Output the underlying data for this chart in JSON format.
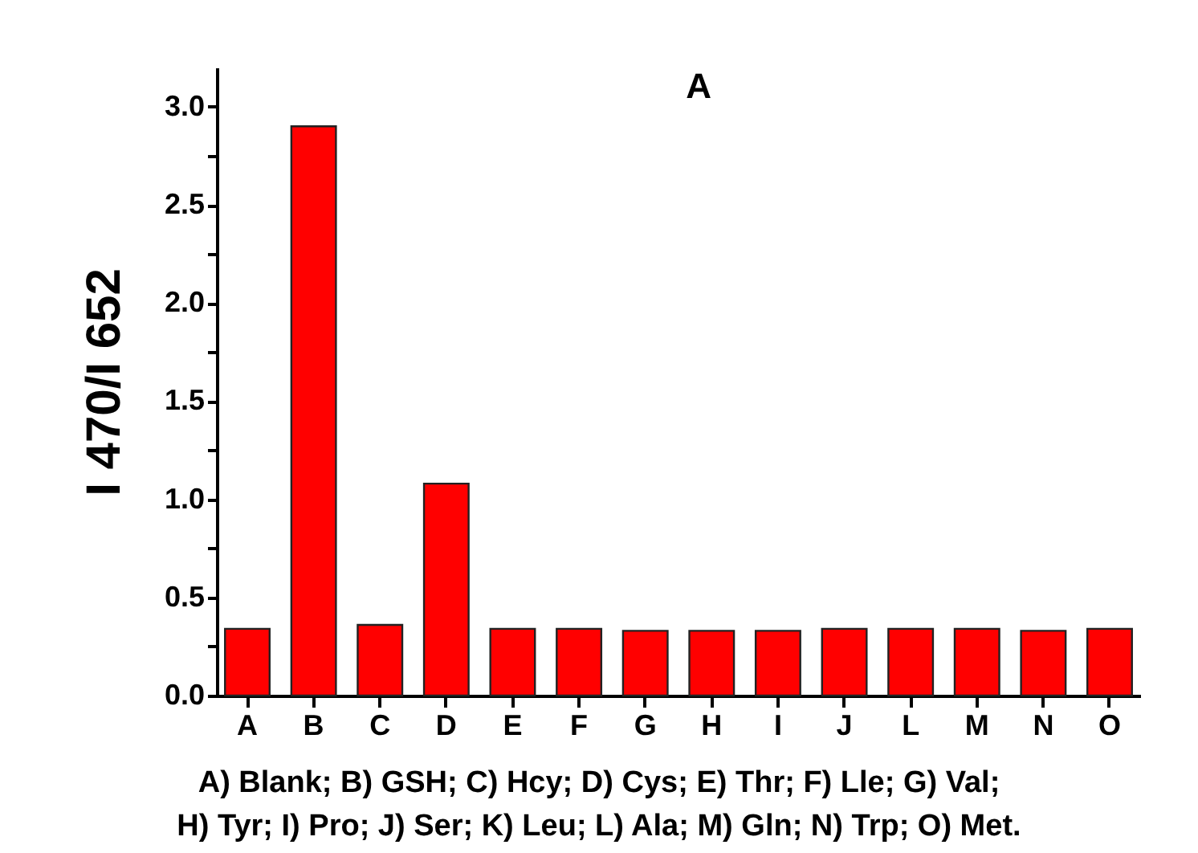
{
  "chart_data": {
    "type": "bar",
    "title": "A",
    "ylabel": "I 470/I 652",
    "categories": [
      "A",
      "B",
      "C",
      "D",
      "E",
      "F",
      "G",
      "H",
      "I",
      "J",
      "L",
      "M",
      "N",
      "O"
    ],
    "values": [
      0.34,
      2.9,
      0.36,
      1.08,
      0.34,
      0.34,
      0.33,
      0.33,
      0.33,
      0.34,
      0.34,
      0.34,
      0.33,
      0.34
    ],
    "color": "#ff0000",
    "ylim": [
      0,
      3.2
    ],
    "yticks": [
      {
        "value": 0,
        "label": "0.0"
      },
      {
        "value": 0.25,
        "label": null
      },
      0.5,
      {
        "value": 0.75,
        "label": null
      },
      {
        "value": 1,
        "label": "1.0"
      },
      {
        "value": 1.25,
        "label": null
      },
      1.5,
      {
        "value": 1.75,
        "label": null
      },
      {
        "value": 2,
        "label": "2.0"
      },
      {
        "value": 2.25,
        "label": null
      },
      2.5,
      {
        "value": 2.75,
        "label": null
      },
      {
        "value": 3,
        "label": "3.0"
      }
    ],
    "annotations": [
      "A) Blank; B) GSH; C) Hcy; D) Cys; E) Thr; F) Lle; G) Val;",
      "H) Tyr; I) Pro; J) Ser; K) Leu; L) Ala; M) Gln; N) Trp; O) Met."
    ]
  }
}
